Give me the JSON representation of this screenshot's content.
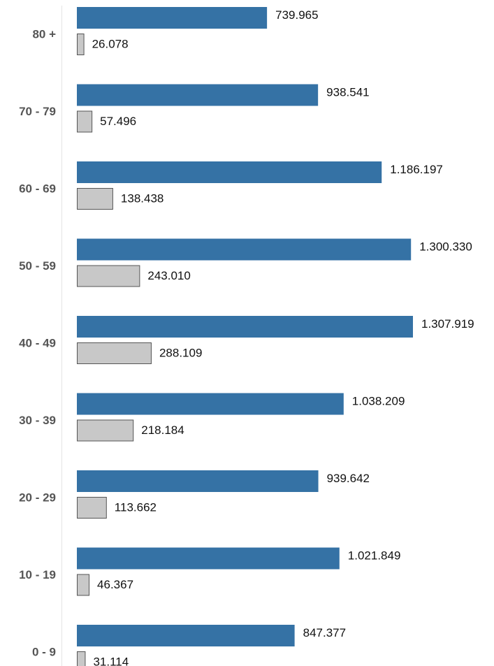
{
  "chart_data": {
    "type": "bar",
    "orientation": "horizontal",
    "categories": [
      "80 +",
      "70 - 79",
      "60 - 69",
      "50 - 59",
      "40 - 49",
      "30 - 39",
      "20 - 29",
      "10 - 19",
      "0 - 9"
    ],
    "series": [
      {
        "values": [
          739965,
          938541,
          1186197,
          1300330,
          1307919,
          1038209,
          939642,
          1021849,
          847377
        ],
        "value_labels": [
          "739.965",
          "938.541",
          "1.186.197",
          "1.300.330",
          "1.307.919",
          "1.038.209",
          "939.642",
          "1.021.849",
          "847.377"
        ],
        "color": "#3572a5"
      },
      {
        "values": [
          26078,
          57496,
          138438,
          243010,
          288109,
          218184,
          113662,
          46367,
          31114
        ],
        "value_labels": [
          "26.078",
          "57.496",
          "138.438",
          "243.010",
          "288.109",
          "218.184",
          "113.662",
          "46.367",
          "31.114"
        ],
        "color": "#c8c8c8",
        "stroke": "#555555"
      }
    ],
    "xlim": [
      0,
      1307919
    ],
    "grid": false,
    "legend": "none"
  }
}
